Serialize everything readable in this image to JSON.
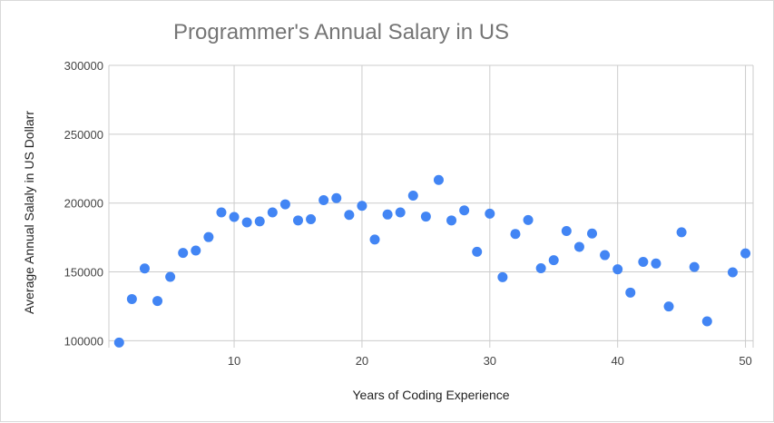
{
  "chart_data": {
    "type": "scatter",
    "title": "Programmer's Annual Salary in US",
    "xlabel": "Years of Coding Experience",
    "ylabel": "Average Annual Salaly in US Dollarr",
    "xlim": [
      0.2,
      50.6
    ],
    "ylim": [
      95000,
      300000
    ],
    "x_ticks": [
      10,
      20,
      30,
      40,
      50
    ],
    "y_ticks": [
      100000,
      150000,
      200000,
      250000,
      300000
    ],
    "grid": true,
    "legend": "none",
    "color": "#4285f4",
    "series": [
      {
        "points": [
          [
            1,
            98700
          ],
          [
            2,
            130300
          ],
          [
            3,
            152500
          ],
          [
            4,
            128900
          ],
          [
            5,
            146400
          ],
          [
            6,
            163800
          ],
          [
            7,
            165500
          ],
          [
            8,
            175300
          ],
          [
            9,
            193200
          ],
          [
            10,
            189900
          ],
          [
            11,
            186000
          ],
          [
            12,
            186700
          ],
          [
            13,
            193200
          ],
          [
            14,
            199100
          ],
          [
            15,
            187400
          ],
          [
            16,
            188300
          ],
          [
            17,
            202100
          ],
          [
            18,
            203600
          ],
          [
            19,
            191400
          ],
          [
            20,
            198000
          ],
          [
            21,
            173500
          ],
          [
            22,
            191700
          ],
          [
            23,
            193200
          ],
          [
            24,
            205400
          ],
          [
            25,
            190200
          ],
          [
            26,
            216800
          ],
          [
            27,
            187400
          ],
          [
            28,
            194700
          ],
          [
            29,
            164600
          ],
          [
            30,
            192300
          ],
          [
            31,
            146200
          ],
          [
            32,
            177600
          ],
          [
            33,
            187700
          ],
          [
            34,
            152700
          ],
          [
            35,
            158500
          ],
          [
            36,
            179700
          ],
          [
            37,
            168200
          ],
          [
            38,
            177900
          ],
          [
            39,
            162200
          ],
          [
            40,
            151900
          ],
          [
            41,
            135000
          ],
          [
            42,
            157300
          ],
          [
            43,
            156100
          ],
          [
            44,
            124900
          ],
          [
            45,
            178800
          ],
          [
            46,
            153600
          ],
          [
            47,
            114100
          ],
          [
            49,
            149700
          ],
          [
            50,
            163500
          ]
        ]
      }
    ]
  }
}
